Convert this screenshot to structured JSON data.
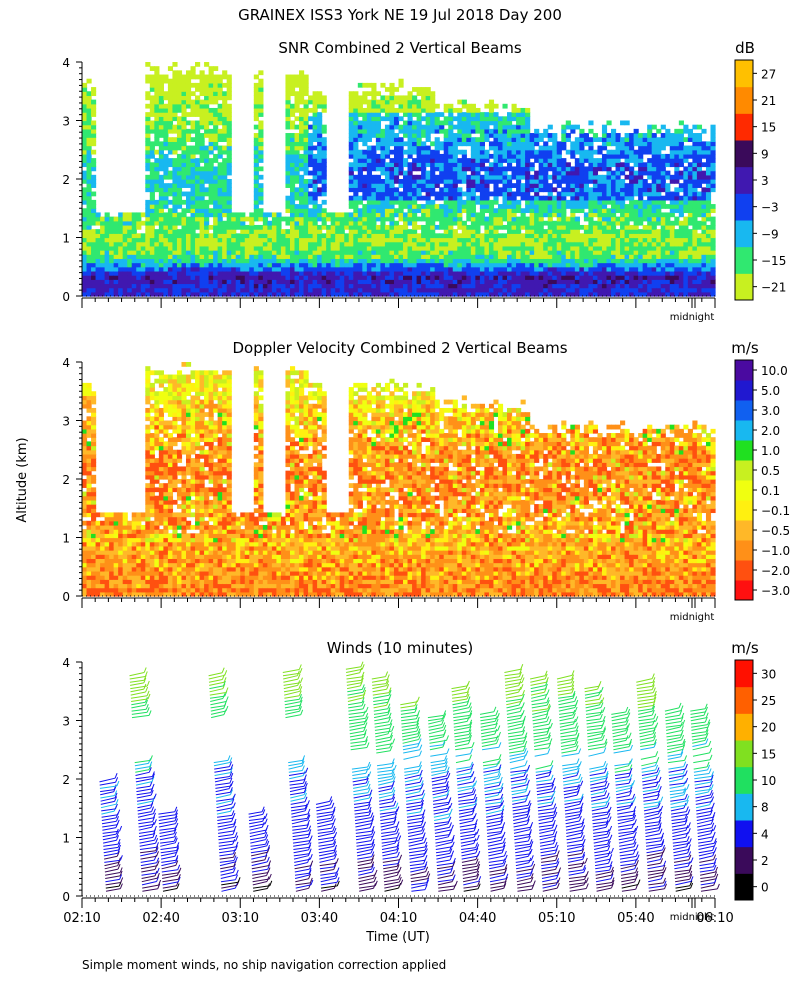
{
  "figure": {
    "title": "GRAINEX ISS3 York NE  19 Jul 2018 Day 200",
    "footer_note": "Simple moment winds, no ship navigation correction applied",
    "shared_ylabel": "Altitude (km)",
    "shared_xlabel": "Time (UT)",
    "midnight_label": "midnight",
    "yticks": [
      "0",
      "1",
      "2",
      "3",
      "4"
    ],
    "xticks": [
      "02:10",
      "02:40",
      "03:10",
      "03:40",
      "04:10",
      "04:40",
      "05:10",
      "05:40",
      "06:10"
    ]
  },
  "colors": {
    "snr": [
      "#c8f020",
      "#30e870",
      "#18b8f0",
      "#1040f0",
      "#4018b0",
      "#3a0a5a",
      "#ff2a00",
      "#ff8a00",
      "#ffc000"
    ],
    "vel": [
      "#ff1010",
      "#ff5010",
      "#ff9018",
      "#ffb828",
      "#fff010",
      "#f0ff10",
      "#c8f020",
      "#20e020",
      "#18b8f0",
      "#1060f0",
      "#2018d0",
      "#4a0aa0",
      "#2a0630"
    ],
    "wind": [
      "#000000",
      "#3a0a5a",
      "#1010f0",
      "#18b8f0",
      "#20e060",
      "#80e020",
      "#ffb000",
      "#ff6000",
      "#ff1000"
    ]
  },
  "chart_data": [
    {
      "type": "heatmap",
      "title": "SNR Combined 2 Vertical Beams",
      "unit": "dB",
      "xlabel": "",
      "ylabel": "Altitude (km)",
      "xlim_hours": [
        2.167,
        6.167
      ],
      "ylim_km": [
        0,
        4
      ],
      "colorbar_ticks": [
        "27",
        "21",
        "15",
        "9",
        "3",
        "−3",
        "−9",
        "−15",
        "−21"
      ],
      "colorbar_values": [
        27,
        21,
        15,
        9,
        3,
        -3,
        -9,
        -15,
        -21
      ],
      "data_gaps_hours": [
        [
          2.25,
          2.58
        ],
        [
          3.1,
          3.25
        ],
        [
          3.3,
          3.45
        ],
        [
          3.7,
          3.85
        ]
      ],
      "vertical_profile": [
        {
          "alt_km": 0.1,
          "snr_db": 3
        },
        {
          "alt_km": 0.4,
          "snr_db": 6
        },
        {
          "alt_km": 0.7,
          "snr_db": -12
        },
        {
          "alt_km": 1.0,
          "snr_db": -16
        },
        {
          "alt_km": 1.6,
          "snr_db": -10
        },
        {
          "alt_km": 2.2,
          "snr_db": -8
        },
        {
          "alt_km": 2.8,
          "snr_db": -14
        },
        {
          "alt_km": 3.4,
          "snr_db": -18
        },
        {
          "alt_km": 4.0,
          "snr_db": -21
        }
      ]
    },
    {
      "type": "heatmap",
      "title": "Doppler Velocity Combined 2 Vertical Beams",
      "unit": "m/s",
      "xlabel": "",
      "ylabel": "Altitude (km)",
      "xlim_hours": [
        2.167,
        6.167
      ],
      "ylim_km": [
        0,
        4
      ],
      "colorbar_ticks": [
        "10.0",
        "5.0",
        "3.0",
        "2.0",
        "1.0",
        "0.5",
        "0.1",
        "−0.1",
        "−0.5",
        "−1.0",
        "−2.0",
        "−3.0"
      ],
      "colorbar_values": [
        10.0,
        5.0,
        3.0,
        2.0,
        1.0,
        0.5,
        0.1,
        -0.1,
        -0.5,
        -1.0,
        -2.0,
        -3.0
      ],
      "vertical_profile": [
        {
          "alt_km": 0.2,
          "vel_ms": -0.8
        },
        {
          "alt_km": 0.8,
          "vel_ms": -0.4
        },
        {
          "alt_km": 1.5,
          "vel_ms": -0.6
        },
        {
          "alt_km": 2.2,
          "vel_ms": -0.9
        },
        {
          "alt_km": 3.0,
          "vel_ms": -0.3
        },
        {
          "alt_km": 3.6,
          "vel_ms": 0.3
        }
      ]
    },
    {
      "type": "scatter",
      "subtype": "wind-barbs",
      "title": "Winds (10 minutes)",
      "unit": "m/s",
      "xlabel": "Time (UT)",
      "ylabel": "Altitude (km)",
      "xlim_hours": [
        2.167,
        6.167
      ],
      "ylim_km": [
        0,
        4
      ],
      "colorbar_ticks": [
        "30",
        "25",
        "20",
        "15",
        "10",
        "8",
        "4",
        "2",
        "0"
      ],
      "colorbar_values": [
        30,
        25,
        20,
        15,
        10,
        8,
        4,
        2,
        0
      ],
      "profile_times_hours": [
        2.27,
        2.5,
        2.63,
        3.0,
        3.2,
        3.47,
        3.63,
        3.87,
        4.03,
        4.2,
        4.37,
        4.53,
        4.7,
        4.87,
        5.03,
        5.2,
        5.37,
        5.53,
        5.7,
        5.87,
        6.03
      ],
      "speed_profile": [
        {
          "alt_km": 0.1,
          "speed_ms": 3
        },
        {
          "alt_km": 1.0,
          "speed_ms": 6
        },
        {
          "alt_km": 2.0,
          "speed_ms": 8
        },
        {
          "alt_km": 2.5,
          "speed_ms": 11
        },
        {
          "alt_km": 3.0,
          "speed_ms": 13
        },
        {
          "alt_km": 3.5,
          "speed_ms": 16
        },
        {
          "alt_km": 4.0,
          "speed_ms": 18
        }
      ]
    }
  ]
}
